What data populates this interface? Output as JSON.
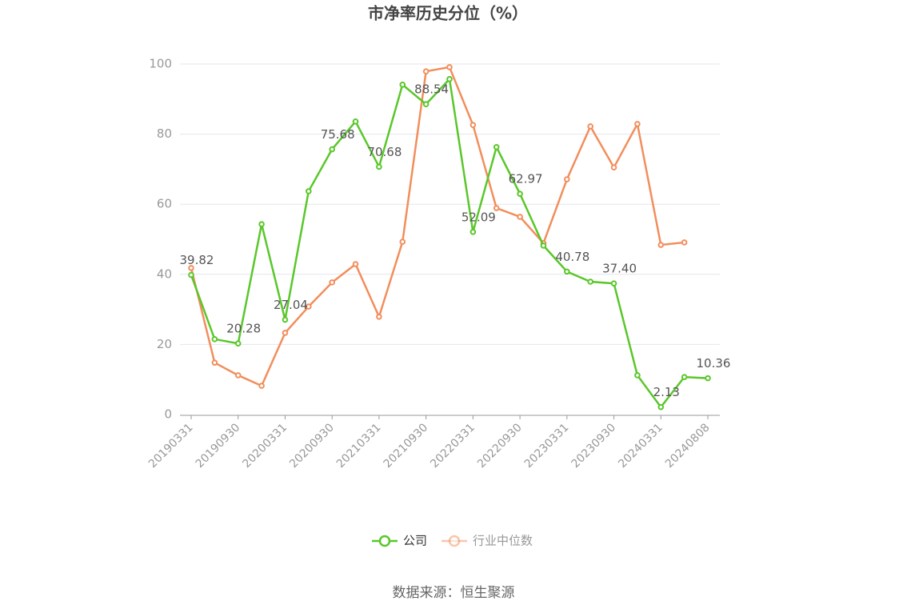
{
  "chart_data": {
    "type": "line",
    "title": "市净率历史分位（%）",
    "source": "数据来源：恒生聚源",
    "categories": [
      "20190331",
      null,
      "20190930",
      null,
      "20200331",
      null,
      "20200930",
      null,
      "20210331",
      null,
      "20210930",
      null,
      "20220331",
      null,
      "20220930",
      null,
      "20230331",
      null,
      "20230930",
      null,
      "20240331",
      null,
      "20240808"
    ],
    "series": [
      {
        "name": "公司",
        "color": "#5ac72a",
        "values": [
          39.82,
          21.5,
          20.28,
          54.3,
          27.04,
          63.7,
          75.68,
          83.6,
          70.68,
          94.1,
          88.54,
          95.7,
          52.09,
          76.3,
          62.97,
          48.2,
          40.78,
          37.9,
          37.4,
          11.2,
          2.13,
          10.7,
          10.36
        ],
        "value_labels": [
          "39.82",
          null,
          "20.28",
          null,
          "27.04",
          null,
          "75.68",
          null,
          "70.68",
          null,
          "88.54",
          null,
          "52.09",
          null,
          "62.97",
          null,
          "40.78",
          null,
          "37.40",
          null,
          "2.13",
          null,
          "10.36"
        ]
      },
      {
        "name": "行业中位数",
        "color": "#f28e5c",
        "values": [
          41.8,
          14.8,
          11.2,
          8.2,
          23.3,
          30.8,
          37.7,
          42.9,
          27.9,
          49.3,
          97.9,
          99.1,
          82.6,
          58.9,
          56.4,
          48.9,
          67.1,
          82.2,
          70.5,
          82.9,
          48.4,
          49.1,
          null
        ]
      }
    ],
    "ylim": [
      0,
      100
    ],
    "yticks": [
      0,
      20,
      40,
      60,
      80,
      100
    ],
    "grid": true
  }
}
